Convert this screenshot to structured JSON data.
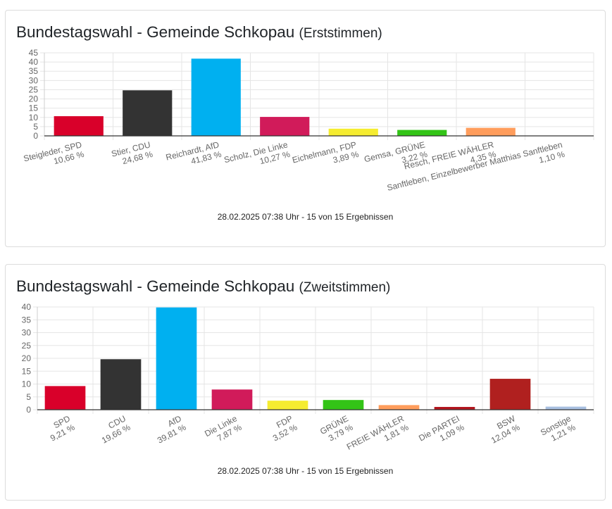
{
  "chart_data": [
    {
      "type": "bar",
      "title": "Bundestagswahl - Gemeinde Schkopau",
      "subtitle": "(Erststimmen)",
      "categories": [
        "Steigleder, SPD",
        "Stier, CDU",
        "Reichardt, AfD",
        "Scholz, Die Linke",
        "Eichelmann, FDP",
        "Gemsa, GRÜNE",
        "Resch, FREIE WÄHLER",
        "Sanftleben, Einzelbewerber Matthias Sanftleben"
      ],
      "value_labels": [
        "10,66 %",
        "24,68 %",
        "41,83 %",
        "10,27 %",
        "3,89 %",
        "3,22 %",
        "4,35 %",
        "1,10 %"
      ],
      "values": [
        10.66,
        24.68,
        41.83,
        10.27,
        3.89,
        3.22,
        4.35,
        1.1
      ],
      "colors": [
        "#d9002a",
        "#333333",
        "#00b0f0",
        "#d11b5a",
        "#f5ec30",
        "#33c417",
        "#ff9d5c",
        "#ffffff"
      ],
      "ylim": [
        0,
        45
      ],
      "yticks": [
        "0",
        "5",
        "10",
        "15",
        "20",
        "25",
        "30",
        "35",
        "40",
        "45"
      ],
      "grid": true,
      "footer": "28.02.2025 07:38 Uhr - 15 von 15 Ergebnissen"
    },
    {
      "type": "bar",
      "title": "Bundestagswahl - Gemeinde Schkopau",
      "subtitle": "(Zweitstimmen)",
      "categories": [
        "SPD",
        "CDU",
        "AfD",
        "Die Linke",
        "FDP",
        "GRÜNE",
        "FREIE WÄHLER",
        "Die PARTEI",
        "BSW",
        "Sonstige"
      ],
      "value_labels": [
        "9,21 %",
        "19,66 %",
        "39,81 %",
        "7,87 %",
        "3,52 %",
        "3,79 %",
        "1,81 %",
        "1,09 %",
        "12,04 %",
        "1,21 %"
      ],
      "values": [
        9.21,
        19.66,
        39.81,
        7.87,
        3.52,
        3.79,
        1.81,
        1.09,
        12.04,
        1.21
      ],
      "colors": [
        "#d9002a",
        "#333333",
        "#00b0f0",
        "#d11b5a",
        "#f5ec30",
        "#33c417",
        "#ff9d5c",
        "#b3161e",
        "#b0201f",
        "#a8bfe0"
      ],
      "ylim": [
        0,
        40
      ],
      "yticks": [
        "0",
        "5",
        "10",
        "15",
        "20",
        "25",
        "30",
        "35",
        "40"
      ],
      "grid": true,
      "footer": "28.02.2025 07:38 Uhr - 15 von 15 Ergebnissen"
    }
  ]
}
